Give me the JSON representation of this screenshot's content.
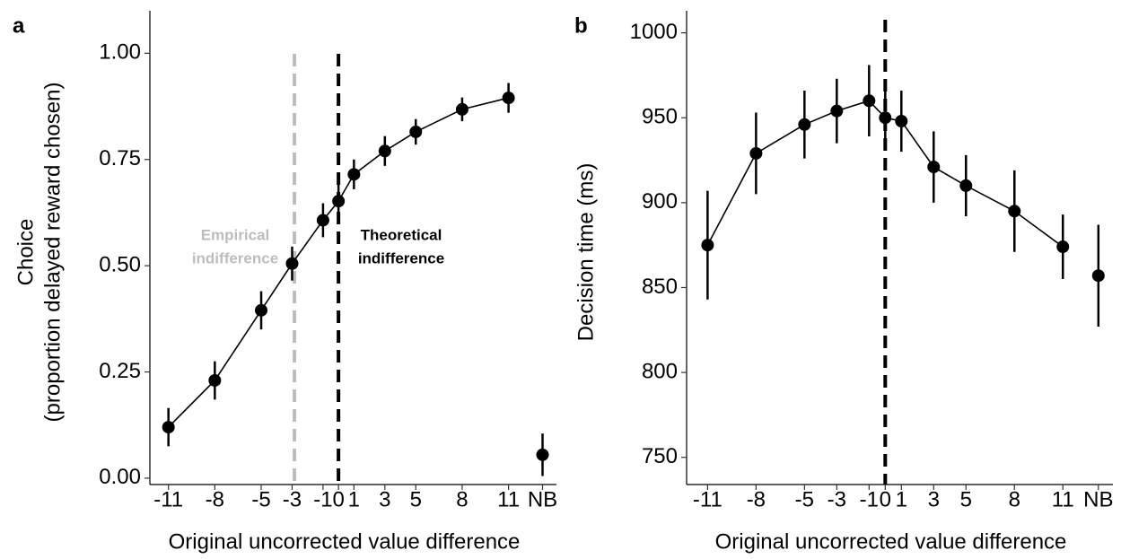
{
  "chart_data": [
    {
      "type": "line",
      "panel_label": "a",
      "xlabel": "Original uncorrected value difference",
      "ylabel": [
        "Choice",
        "(proportion delayed reward chosen)"
      ],
      "x": [
        -11,
        -8,
        -5,
        -3,
        -1,
        0,
        1,
        3,
        5,
        8,
        11
      ],
      "values": [
        0.12,
        0.23,
        0.395,
        0.505,
        0.607,
        0.652,
        0.715,
        0.77,
        0.815,
        0.868,
        0.895
      ],
      "errors": [
        0.045,
        0.045,
        0.045,
        0.04,
        0.04,
        0.04,
        0.035,
        0.035,
        0.03,
        0.028,
        0.035
      ],
      "nb_point": {
        "x": 13.2,
        "value": 0.055,
        "error": 0.05
      },
      "color": "#000000",
      "xlim": [
        -12.2,
        14.1
      ],
      "xticks": [
        -11,
        -8,
        -5,
        -3,
        -1,
        0,
        1,
        3,
        5,
        8,
        11,
        {
          "value": 13.2,
          "label": "NB"
        }
      ],
      "ylim": [
        -0.015,
        1.1
      ],
      "yticks": [
        {
          "value": 0,
          "label": "0.00"
        },
        {
          "value": 0.25,
          "label": "0.25"
        },
        {
          "value": 0.5,
          "label": "0.50"
        },
        {
          "value": 0.75,
          "label": "0.75"
        },
        {
          "value": 1,
          "label": "1.00"
        }
      ],
      "vlines": [
        {
          "x": -2.85,
          "color": "#bdbdbd"
        },
        {
          "x": 0,
          "color": "#000000"
        }
      ],
      "annotations": [
        {
          "lines": [
            "Empirical",
            "indifference"
          ],
          "color": "#bdbdbd"
        },
        {
          "lines": [
            "Theoretical",
            "indifference"
          ],
          "color": "#000000"
        }
      ]
    },
    {
      "type": "line",
      "panel_label": "b",
      "xlabel": "Original uncorrected value difference",
      "ylabel": [
        "Decision time (ms)"
      ],
      "x": [
        -11,
        -8,
        -5,
        -3,
        -1,
        0,
        1,
        3,
        5,
        8,
        11
      ],
      "values": [
        875,
        929,
        946,
        954,
        960,
        950,
        948,
        921,
        910,
        895,
        874
      ],
      "errors": [
        32,
        24,
        20,
        19,
        21,
        16,
        18,
        21,
        18,
        24,
        19
      ],
      "nb_point": {
        "x": 13.2,
        "value": 857,
        "error": 30
      },
      "color": "#000000",
      "xlim": [
        -12.3,
        14.1
      ],
      "xticks": [
        -11,
        -8,
        -5,
        -3,
        -1,
        0,
        1,
        3,
        5,
        8,
        11,
        {
          "value": 13.2,
          "label": "NB"
        }
      ],
      "ylim": [
        734,
        1013
      ],
      "yticks": [
        750,
        800,
        850,
        900,
        950,
        1000
      ],
      "vlines": [
        {
          "x": 0,
          "color": "#000000"
        }
      ],
      "annotations": []
    }
  ]
}
